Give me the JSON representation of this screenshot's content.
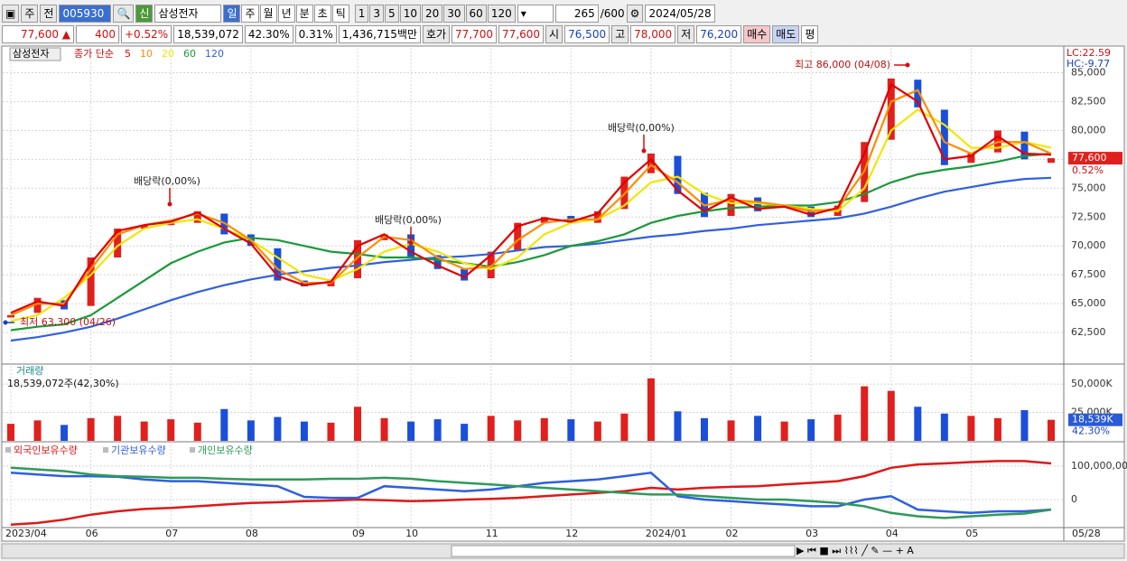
{
  "toolbar": {
    "market": "주",
    "scope": "전",
    "code": "005930",
    "badge": "신",
    "name": "삼성전자",
    "periods": [
      "일",
      "주",
      "월",
      "년",
      "분",
      "초",
      "틱"
    ],
    "intervals": [
      "1",
      "3",
      "5",
      "10",
      "20",
      "30",
      "60",
      "120"
    ],
    "count": "265",
    "max": "/600",
    "date": "2024/05/28"
  },
  "quote": {
    "price": "77,600 ▲",
    "change": "400",
    "rate": "+0.52%",
    "volume": "18,539,072",
    "volume_ratio": "42.30%",
    "turnover": "0.31%",
    "amount": "1,436,715백만",
    "ask_label": "호가",
    "ask": "77,700",
    "bid": "77,600",
    "open_label": "시",
    "open": "76,500",
    "high_label": "고",
    "high": "78,000",
    "low_label": "저",
    "low": "76,200",
    "buy": "매수",
    "sell": "매도",
    "avg": "평"
  },
  "chart_data": [
    {
      "type": "candlestick",
      "title": "삼성전자",
      "legend_title": "종가 단순",
      "open": [
        63800,
        64200,
        65300,
        64800,
        69000,
        71500,
        71800,
        72000,
        72800,
        71000,
        69800,
        67000,
        66500,
        67200,
        70500,
        71000,
        69200,
        68000,
        67200,
        69600,
        72000,
        72600,
        72000,
        73200,
        76300,
        77800,
        74600,
        72600,
        74200,
        73300,
        73400,
        72600,
        73800,
        79200,
        84400,
        81800,
        77200,
        78100,
        79900,
        77200
      ],
      "close": [
        64000,
        65500,
        64500,
        69000,
        71500,
        71800,
        72000,
        73000,
        71000,
        70000,
        67000,
        66500,
        67000,
        70500,
        71000,
        69000,
        68000,
        67000,
        69500,
        72000,
        72500,
        72000,
        73000,
        76000,
        78000,
        74500,
        72500,
        74500,
        73000,
        73500,
        72500,
        73500,
        79000,
        84500,
        82000,
        77000,
        78000,
        80000,
        77500,
        77600
      ],
      "up_color": "#e0201c",
      "down_color": "#1a4fd8",
      "series": [
        {
          "name": "5",
          "color": "#e00000",
          "values": [
            64200,
            65200,
            64800,
            68500,
            71300,
            71800,
            72100,
            72900,
            71500,
            70200,
            67400,
            66600,
            66900,
            70000,
            71000,
            69500,
            68300,
            67300,
            69200,
            71700,
            72400,
            72100,
            72800,
            75500,
            77500,
            74800,
            73000,
            74200,
            73200,
            73400,
            72700,
            73300,
            78000,
            84000,
            82500,
            77500,
            77800,
            79500,
            78000,
            77900
          ]
        },
        {
          "name": "10",
          "color": "#ff8c00",
          "values": [
            64000,
            65000,
            65000,
            68000,
            71000,
            71800,
            72200,
            72800,
            72000,
            70500,
            68000,
            66800,
            66800,
            69000,
            70800,
            70500,
            69000,
            68000,
            68200,
            70500,
            72000,
            72300,
            72300,
            74500,
            77000,
            75500,
            73500,
            74000,
            73800,
            73500,
            73000,
            73200,
            76500,
            82500,
            83500,
            79000,
            78000,
            79000,
            79000,
            78000
          ]
        },
        {
          "name": "20",
          "color": "#f2e600",
          "values": [
            63500,
            64000,
            65500,
            67500,
            70000,
            71500,
            72000,
            72300,
            71500,
            70500,
            69000,
            67500,
            67000,
            68000,
            69500,
            70200,
            69500,
            68500,
            68000,
            69000,
            71000,
            72000,
            72300,
            73500,
            75500,
            76000,
            74500,
            73700,
            73700,
            73500,
            73200,
            73000,
            75000,
            80000,
            81800,
            80500,
            78500,
            78500,
            79000,
            78500
          ]
        },
        {
          "name": "60",
          "color": "#1a9a3a",
          "values": [
            62700,
            63000,
            63200,
            64000,
            65500,
            67000,
            68500,
            69500,
            70300,
            70700,
            70500,
            70000,
            69500,
            69300,
            69000,
            69000,
            68800,
            68500,
            68200,
            68600,
            69200,
            70000,
            70400,
            71000,
            72000,
            72600,
            73000,
            73300,
            73400,
            73500,
            73500,
            73800,
            74500,
            75500,
            76200,
            76600,
            76900,
            77300,
            77800,
            78000
          ]
        },
        {
          "name": "120",
          "color": "#3060e0",
          "values": [
            61800,
            62100,
            62500,
            63000,
            63700,
            64500,
            65300,
            66000,
            66600,
            67100,
            67500,
            67800,
            68100,
            68300,
            68600,
            68800,
            69000,
            69100,
            69300,
            69600,
            69900,
            70000,
            70200,
            70500,
            70800,
            71000,
            71300,
            71500,
            71800,
            72000,
            72200,
            72400,
            72800,
            73400,
            74100,
            74700,
            75100,
            75500,
            75800,
            75900
          ]
        }
      ],
      "ylim": [
        60000,
        87000
      ],
      "yticks": [
        {
          "value": 62500,
          "label": "62,500"
        },
        {
          "value": 65000,
          "label": "65,000"
        },
        {
          "value": 67500,
          "label": "67,500"
        },
        {
          "value": 70000,
          "label": "70,000"
        },
        {
          "value": 72500,
          "label": "72,500"
        },
        {
          "value": 75000,
          "label": "75,000"
        },
        {
          "value": 77500,
          "label": "77,500"
        },
        {
          "value": 80000,
          "label": "80,000"
        },
        {
          "value": 82500,
          "label": "82,500"
        },
        {
          "value": 85000,
          "label": "85,000"
        }
      ],
      "grid": true,
      "annotations": [
        "최고 86,000 (04/08)",
        "최저 63,300 (04/26)",
        "배당락(0,00%)",
        "배당락(0,00%)",
        "배당락(0,00%)"
      ],
      "side_labels": [
        "LC:22.59",
        "HC:-9.77"
      ],
      "last_price_label": "77,600",
      "last_change_label": "0.52%"
    },
    {
      "type": "bar",
      "title": "거래량",
      "subtitle": "18,539,072주(42,30%)",
      "values": [
        15000,
        18000,
        14000,
        20000,
        22000,
        17000,
        19000,
        16000,
        28000,
        18000,
        21000,
        17000,
        16000,
        30000,
        20000,
        17000,
        19000,
        15000,
        22000,
        18000,
        20000,
        19000,
        17000,
        24000,
        55000,
        26000,
        20000,
        18000,
        22000,
        17000,
        19000,
        23000,
        48000,
        44000,
        30000,
        24000,
        22000,
        20000,
        27000,
        18539
      ],
      "ylim": [
        0,
        66000
      ],
      "yticks": [
        {
          "value": 25000,
          "label": "25,000K"
        },
        {
          "value": 50000,
          "label": "50,000K"
        }
      ],
      "last_value_label": "18,539K",
      "last_ratio_label": "42.30%"
    },
    {
      "type": "line",
      "categories": [
        "2023/04",
        null,
        null,
        "06",
        null,
        null,
        "07",
        null,
        null,
        "08",
        null,
        null,
        null,
        "09",
        null,
        "10",
        null,
        null,
        "11",
        null,
        null,
        "12",
        null,
        null,
        "2024/01",
        null,
        null,
        "02",
        null,
        null,
        "03",
        null,
        null,
        "04",
        null,
        null,
        "05",
        null,
        null,
        null
      ],
      "series": [
        {
          "name": "외국인보유수량",
          "color": "#e01818",
          "values": [
            -75000000,
            -70000000,
            -60000000,
            -45000000,
            -35000000,
            -28000000,
            -25000000,
            -20000000,
            -15000000,
            -10000000,
            -8000000,
            -5000000,
            -3000000,
            0,
            -2000000,
            -5000000,
            -3000000,
            0,
            2000000,
            5000000,
            10000000,
            15000000,
            20000000,
            25000000,
            35000000,
            30000000,
            35000000,
            38000000,
            40000000,
            45000000,
            50000000,
            55000000,
            70000000,
            95000000,
            105000000,
            108000000,
            112000000,
            115000000,
            115000000,
            108000000
          ]
        },
        {
          "name": "기관보유수량",
          "color": "#2f5fe0",
          "values": [
            80000000,
            75000000,
            70000000,
            70000000,
            68000000,
            60000000,
            55000000,
            55000000,
            50000000,
            45000000,
            40000000,
            8000000,
            5000000,
            5000000,
            40000000,
            35000000,
            30000000,
            25000000,
            30000000,
            40000000,
            50000000,
            55000000,
            60000000,
            70000000,
            80000000,
            10000000,
            0,
            -5000000,
            -10000000,
            -15000000,
            -20000000,
            -20000000,
            0,
            10000000,
            -30000000,
            -35000000,
            -40000000,
            -35000000,
            -35000000,
            -30000000
          ]
        },
        {
          "name": "개인보유수량",
          "color": "#2e9a5a",
          "values": [
            95000000,
            90000000,
            85000000,
            75000000,
            70000000,
            68000000,
            65000000,
            65000000,
            62000000,
            60000000,
            60000000,
            60000000,
            62000000,
            62000000,
            65000000,
            62000000,
            55000000,
            50000000,
            45000000,
            40000000,
            35000000,
            30000000,
            25000000,
            20000000,
            15000000,
            15000000,
            10000000,
            5000000,
            0,
            0,
            -5000000,
            -10000000,
            -20000000,
            -40000000,
            -50000000,
            -55000000,
            -50000000,
            -45000000,
            -42000000,
            -30000000
          ]
        }
      ],
      "ylim": [
        -81000000,
        170000000
      ],
      "yticks": [
        0,
        {
          "value": 100000000,
          "label": "100,000,00"
        }
      ],
      "end_label": "05/28"
    }
  ]
}
